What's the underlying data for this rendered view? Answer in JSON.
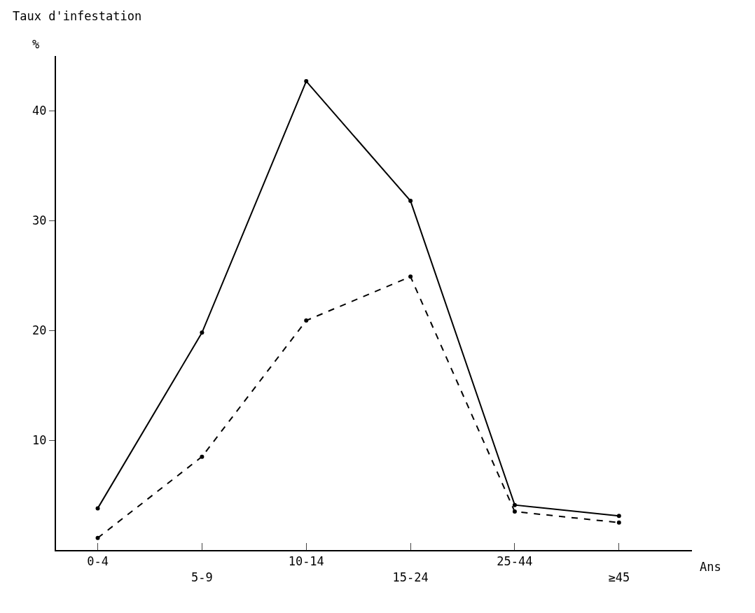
{
  "chart_data": {
    "type": "line",
    "ylabel": "Taux d'infestation",
    "xlabel": "Ans",
    "annotations": [
      "%"
    ],
    "categories": [
      "0-4",
      "5-9",
      "10-14",
      "15-24",
      "25-44",
      "≥45"
    ],
    "series": [
      {
        "color": "#000000",
        "line_style": "solid",
        "values": [
          3.8,
          19.8,
          42.7,
          31.8,
          4.1,
          3.1
        ]
      },
      {
        "color": "#000000",
        "line_style": "dashed",
        "values": [
          1.1,
          8.5,
          20.9,
          24.9,
          3.5,
          2.5
        ]
      }
    ],
    "ylim": [
      0,
      45
    ],
    "yticks": [
      10,
      20,
      30,
      40
    ],
    "marker": "circle",
    "legend": false
  }
}
